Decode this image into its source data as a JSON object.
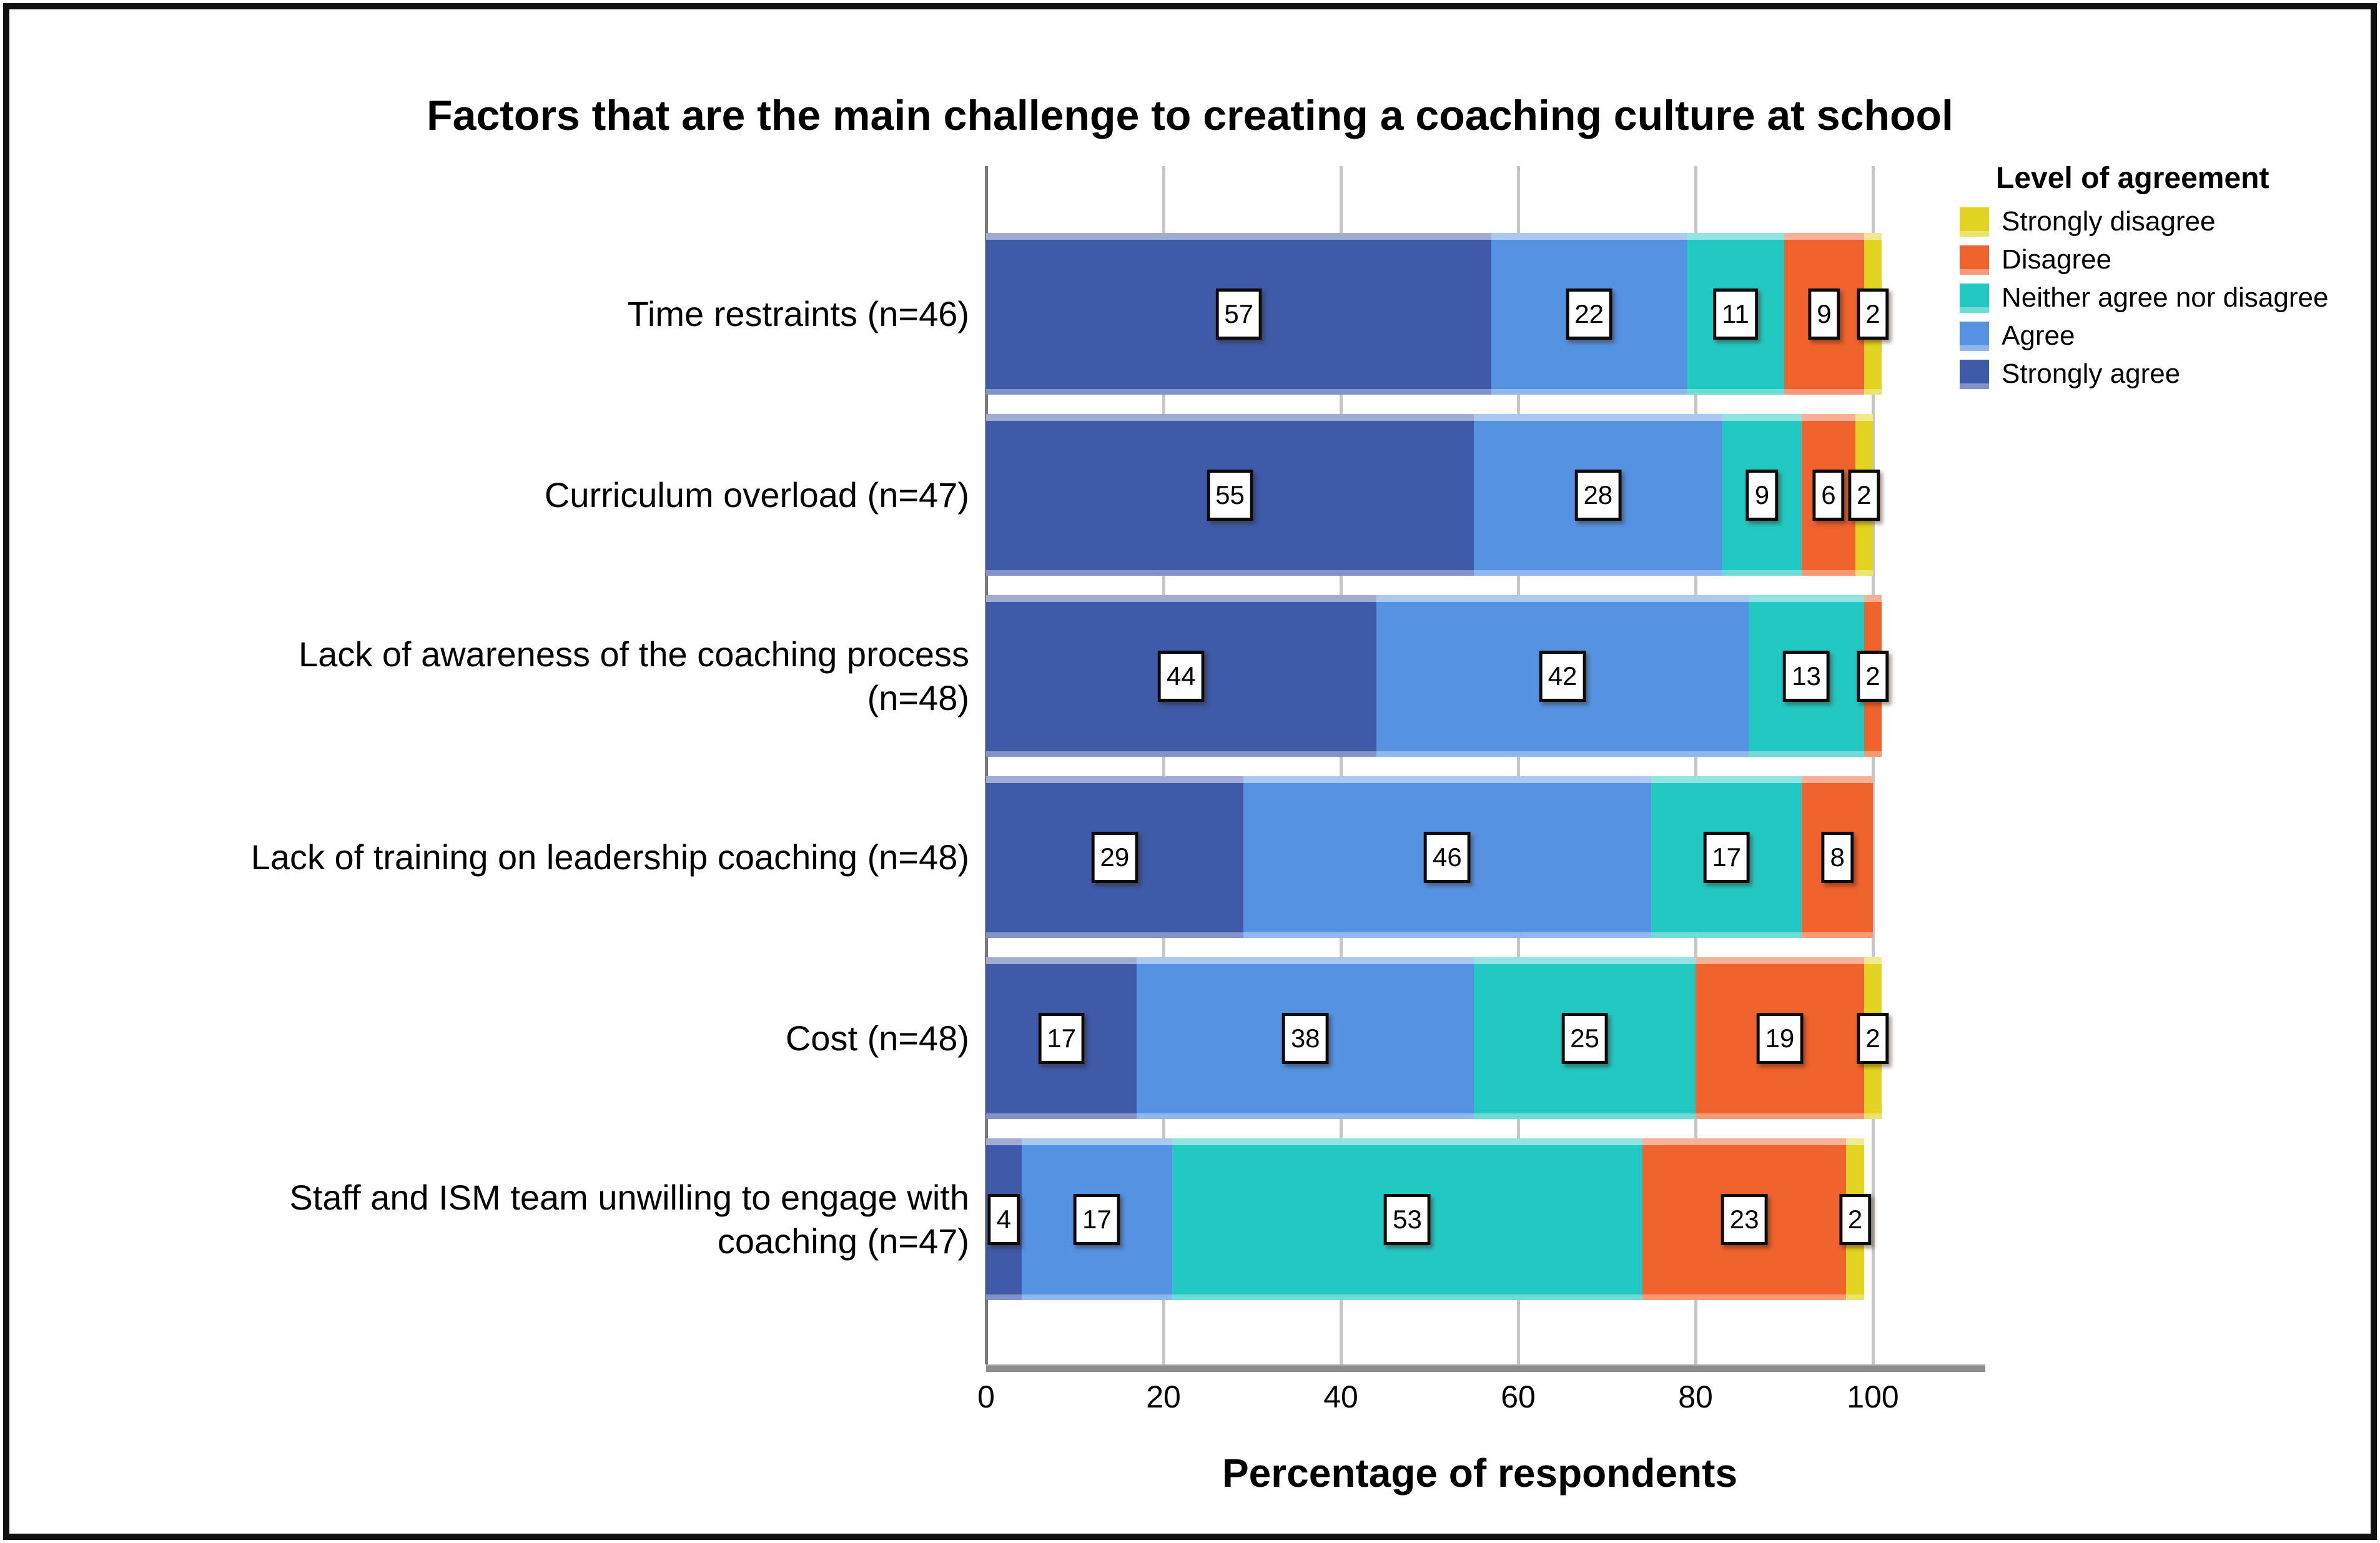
{
  "title": "Factors that are the main challenge to creating a coaching culture at school",
  "x_axis": {
    "label": "Percentage of respondents",
    "ticks": [
      0,
      20,
      40,
      60,
      80,
      100
    ]
  },
  "legend": {
    "title": "Level of agreement",
    "items": [
      {
        "label": "Strongly disagree",
        "color": "#e2d420"
      },
      {
        "label": "Disagree",
        "color": "#f0632d"
      },
      {
        "label": "Neither agree nor disagree",
        "color": "#22c9c3"
      },
      {
        "label": "Agree",
        "color": "#5592e2"
      },
      {
        "label": "Strongly agree",
        "color": "#3e5aa9"
      }
    ]
  },
  "chart_data": {
    "type": "bar",
    "orientation": "horizontal",
    "stacked": true,
    "title": "Factors that are the main challenge to creating a coaching culture at school",
    "xlabel": "Percentage of respondents",
    "xlim": [
      0,
      111
    ],
    "gridlines": [
      0,
      20,
      40,
      60,
      80,
      100
    ],
    "legend_position": "outside-top-right",
    "value_labels": "boxed",
    "categories": [
      "Time restraints (n=46)",
      "Curriculum overload (n=47)",
      "Lack of awareness of the coaching process\n(n=48)",
      "Lack of training on leadership coaching  (n=48)",
      "Cost (n=48)",
      "Staff and ISM team unwilling to engage with\ncoaching (n=47)"
    ],
    "series": [
      {
        "name": "Strongly agree",
        "color": "#3e5aa9",
        "values": [
          57,
          55,
          44,
          29,
          17,
          4
        ]
      },
      {
        "name": "Agree",
        "color": "#5592e2",
        "values": [
          22,
          28,
          42,
          46,
          38,
          17
        ]
      },
      {
        "name": "Neither agree nor disagree",
        "color": "#22c9c3",
        "values": [
          11,
          9,
          13,
          17,
          25,
          53
        ]
      },
      {
        "name": "Disagree",
        "color": "#f0632d",
        "values": [
          9,
          6,
          2,
          8,
          19,
          23
        ]
      },
      {
        "name": "Strongly disagree",
        "color": "#e2d420",
        "values": [
          2,
          2,
          0,
          0,
          2,
          2
        ]
      }
    ]
  },
  "colors": {
    "gridline": "#c6c6c6",
    "zero_gridline": "#7a7a7a",
    "axis_line": "#8d8d8d",
    "border": "#111111"
  }
}
